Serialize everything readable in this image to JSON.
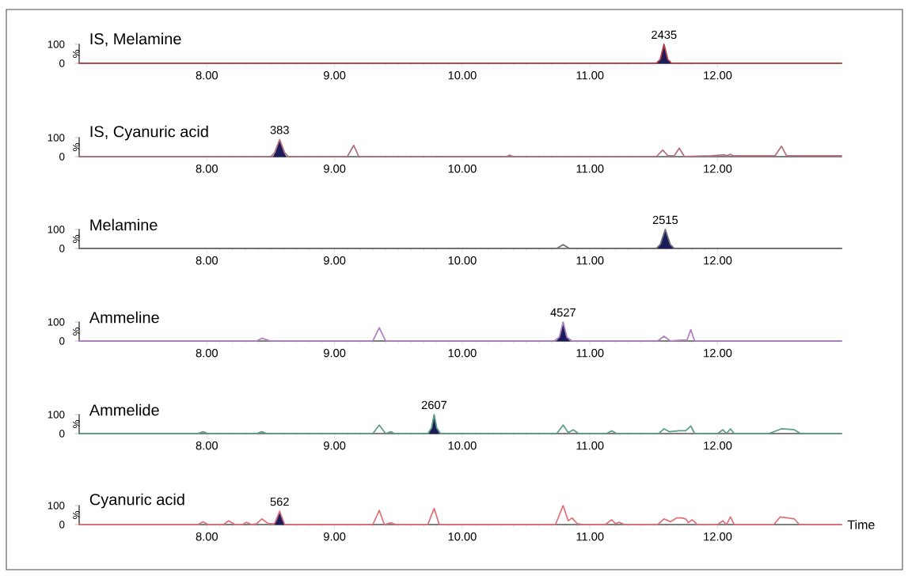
{
  "chart_data": [
    {
      "type": "line",
      "title": "IS, Melamine",
      "ylabel": "%",
      "xlim": [
        7.0,
        12.97
      ],
      "ylim": [
        0,
        100
      ],
      "yticks": [
        0,
        100
      ],
      "xticks": [
        {
          "value": 8,
          "label": "8.00"
        },
        {
          "value": 9,
          "label": "9.00"
        },
        {
          "value": 10,
          "label": "10.00"
        },
        {
          "value": 11,
          "label": "11.00"
        },
        {
          "value": 12,
          "label": "12.00"
        }
      ],
      "annotations": [
        {
          "text": "2435",
          "x": 11.58,
          "y": 100
        }
      ],
      "series": [
        {
          "color": "#c0404a",
          "x": [
            7.0,
            11.52,
            11.55,
            11.58,
            11.61,
            11.64,
            12.97
          ],
          "values": [
            0,
            0,
            20,
            100,
            20,
            0,
            0
          ]
        },
        {
          "type": "area",
          "color": "#1c1c5c",
          "x": [
            11.52,
            11.55,
            11.58,
            11.61,
            11.64
          ],
          "values": [
            0,
            20,
            100,
            20,
            0
          ]
        }
      ]
    },
    {
      "type": "line",
      "title": "IS, Cyanuric acid",
      "ylabel": "%",
      "xlim": [
        7.0,
        12.97
      ],
      "ylim": [
        0,
        100
      ],
      "yticks": [
        0,
        100
      ],
      "xticks": [
        {
          "value": 8,
          "label": "8.00"
        },
        {
          "value": 9,
          "label": "9.00"
        },
        {
          "value": 10,
          "label": "10.00"
        },
        {
          "value": 11,
          "label": "11.00"
        },
        {
          "value": 12,
          "label": "12.00"
        }
      ],
      "annotations": [
        {
          "text": "383",
          "x": 8.57,
          "y": 90
        }
      ],
      "series": [
        {
          "color": "#b0707a",
          "x": [
            7.0,
            8.5,
            8.53,
            8.57,
            8.61,
            8.64,
            9.1,
            9.15,
            9.19,
            10.35,
            10.37,
            10.4,
            11.52,
            11.57,
            11.61,
            11.66,
            11.7,
            11.74,
            11.95,
            12.05,
            12.07,
            12.1,
            12.12,
            12.2,
            12.45,
            12.5,
            12.54,
            12.97
          ],
          "values": [
            0,
            0,
            20,
            90,
            20,
            0,
            0,
            60,
            0,
            0,
            8,
            0,
            0,
            35,
            5,
            5,
            45,
            0,
            5,
            10,
            5,
            12,
            5,
            5,
            5,
            55,
            5,
            5
          ]
        },
        {
          "type": "area",
          "color": "#1c1c5c",
          "x": [
            8.52,
            8.54,
            8.57,
            8.6,
            8.62
          ],
          "values": [
            0,
            25,
            90,
            25,
            0
          ]
        }
      ]
    },
    {
      "type": "line",
      "title": "Melamine",
      "ylabel": "%",
      "xlim": [
        7.0,
        12.97
      ],
      "ylim": [
        0,
        100
      ],
      "yticks": [
        0,
        100
      ],
      "xticks": [
        {
          "value": 8,
          "label": "8.00"
        },
        {
          "value": 9,
          "label": "9.00"
        },
        {
          "value": 10,
          "label": "10.00"
        },
        {
          "value": 11,
          "label": "11.00"
        },
        {
          "value": 12,
          "label": "12.00"
        }
      ],
      "annotations": [
        {
          "text": "2515",
          "x": 11.59,
          "y": 100
        }
      ],
      "series": [
        {
          "color": "#707070",
          "x": [
            7.0,
            10.74,
            10.79,
            10.84,
            11.52,
            11.55,
            11.59,
            11.63,
            11.66,
            12.97
          ],
          "values": [
            0,
            0,
            20,
            0,
            0,
            20,
            100,
            20,
            0,
            0
          ]
        },
        {
          "type": "area",
          "color": "#1c1c5c",
          "x": [
            11.53,
            11.56,
            11.59,
            11.62,
            11.65
          ],
          "values": [
            0,
            30,
            100,
            30,
            0
          ]
        }
      ]
    },
    {
      "type": "line",
      "title": "Ammeline",
      "ylabel": "%",
      "xlim": [
        7.0,
        12.97
      ],
      "ylim": [
        0,
        100
      ],
      "yticks": [
        0,
        100
      ],
      "xticks": [
        {
          "value": 8,
          "label": "8.00"
        },
        {
          "value": 9,
          "label": "9.00"
        },
        {
          "value": 10,
          "label": "10.00"
        },
        {
          "value": 11,
          "label": "11.00"
        },
        {
          "value": 12,
          "label": "12.00"
        }
      ],
      "annotations": [
        {
          "text": "4527",
          "x": 10.79,
          "y": 100
        }
      ],
      "series": [
        {
          "color": "#b080c0",
          "x": [
            7.0,
            8.39,
            8.43,
            8.5,
            9.3,
            9.35,
            9.4,
            10.72,
            10.76,
            10.79,
            10.82,
            10.86,
            11.53,
            11.58,
            11.63,
            11.72,
            11.76,
            11.79,
            11.82,
            12.97
          ],
          "values": [
            0,
            0,
            15,
            0,
            0,
            70,
            0,
            0,
            20,
            100,
            20,
            0,
            0,
            25,
            0,
            5,
            5,
            60,
            0,
            0
          ]
        },
        {
          "type": "area",
          "color": "#1c1c5c",
          "x": [
            10.74,
            10.77,
            10.79,
            10.81,
            10.84
          ],
          "values": [
            0,
            30,
            100,
            30,
            0
          ]
        }
      ]
    },
    {
      "type": "line",
      "title": "Ammelide",
      "ylabel": "%",
      "xlim": [
        7.0,
        12.97
      ],
      "ylim": [
        0,
        100
      ],
      "yticks": [
        0,
        100
      ],
      "xticks": [
        {
          "value": 8,
          "label": "8.00"
        },
        {
          "value": 9,
          "label": "9.00"
        },
        {
          "value": 10,
          "label": "10.00"
        },
        {
          "value": 11,
          "label": "11.00"
        },
        {
          "value": 12,
          "label": "12.00"
        }
      ],
      "annotations": [
        {
          "text": "2607",
          "x": 9.78,
          "y": 100
        }
      ],
      "series": [
        {
          "color": "#5aa080",
          "x": [
            7.0,
            7.93,
            7.97,
            8.01,
            8.39,
            8.43,
            8.47,
            9.3,
            9.35,
            9.4,
            9.44,
            9.47,
            9.5,
            9.73,
            9.76,
            9.78,
            9.8,
            9.83,
            10.74,
            10.79,
            10.83,
            10.87,
            10.91,
            11.13,
            11.17,
            11.21,
            11.54,
            11.58,
            11.62,
            11.7,
            11.75,
            11.79,
            11.82,
            12.0,
            12.04,
            12.07,
            12.1,
            12.13,
            12.4,
            12.5,
            12.6,
            12.65,
            12.97
          ],
          "values": [
            0,
            0,
            10,
            0,
            0,
            10,
            0,
            0,
            45,
            0,
            10,
            0,
            0,
            0,
            30,
            100,
            30,
            0,
            0,
            45,
            5,
            20,
            0,
            0,
            15,
            0,
            0,
            25,
            10,
            15,
            15,
            40,
            0,
            0,
            20,
            0,
            25,
            0,
            0,
            25,
            20,
            0,
            0
          ]
        },
        {
          "type": "area",
          "color": "#1c1c5c",
          "x": [
            9.74,
            9.76,
            9.78,
            9.8,
            9.82
          ],
          "values": [
            0,
            30,
            100,
            30,
            0
          ]
        }
      ]
    },
    {
      "type": "line",
      "title": "Cyanuric acid",
      "ylabel": "%",
      "xlabel": "Time",
      "xlim": [
        7.0,
        12.97
      ],
      "ylim": [
        0,
        100
      ],
      "yticks": [
        0,
        100
      ],
      "xticks": [
        {
          "value": 8,
          "label": "8.00"
        },
        {
          "value": 9,
          "label": "9.00"
        },
        {
          "value": 10,
          "label": "10.00"
        },
        {
          "value": 11,
          "label": "11.00"
        },
        {
          "value": 12,
          "label": "12.00"
        }
      ],
      "annotations": [
        {
          "text": "562",
          "x": 8.57,
          "y": 70
        }
      ],
      "series": [
        {
          "color": "#e07078",
          "x": [
            7.0,
            7.93,
            7.97,
            8.01,
            8.13,
            8.17,
            8.22,
            8.28,
            8.31,
            8.35,
            8.39,
            8.43,
            8.48,
            8.53,
            8.57,
            8.61,
            9.3,
            9.35,
            9.39,
            9.44,
            9.48,
            9.73,
            9.78,
            9.82,
            10.73,
            10.79,
            10.83,
            10.86,
            10.9,
            10.95,
            11.12,
            11.17,
            11.2,
            11.23,
            11.27,
            11.53,
            11.58,
            11.63,
            11.68,
            11.72,
            11.75,
            11.77,
            11.8,
            11.84,
            12.0,
            12.04,
            12.07,
            12.1,
            12.13,
            12.44,
            12.49,
            12.55,
            12.6,
            12.64,
            12.97
          ],
          "values": [
            0,
            0,
            15,
            0,
            0,
            20,
            0,
            0,
            12,
            0,
            5,
            30,
            5,
            5,
            70,
            0,
            0,
            75,
            0,
            10,
            0,
            0,
            85,
            0,
            0,
            100,
            20,
            35,
            5,
            0,
            0,
            25,
            5,
            12,
            0,
            0,
            30,
            15,
            35,
            35,
            30,
            10,
            25,
            0,
            0,
            20,
            0,
            40,
            0,
            0,
            40,
            35,
            30,
            0,
            0
          ]
        },
        {
          "type": "area",
          "color": "#1c1c5c",
          "x": [
            8.53,
            8.55,
            8.57,
            8.59,
            8.61
          ],
          "values": [
            0,
            25,
            70,
            25,
            0
          ]
        }
      ]
    }
  ]
}
